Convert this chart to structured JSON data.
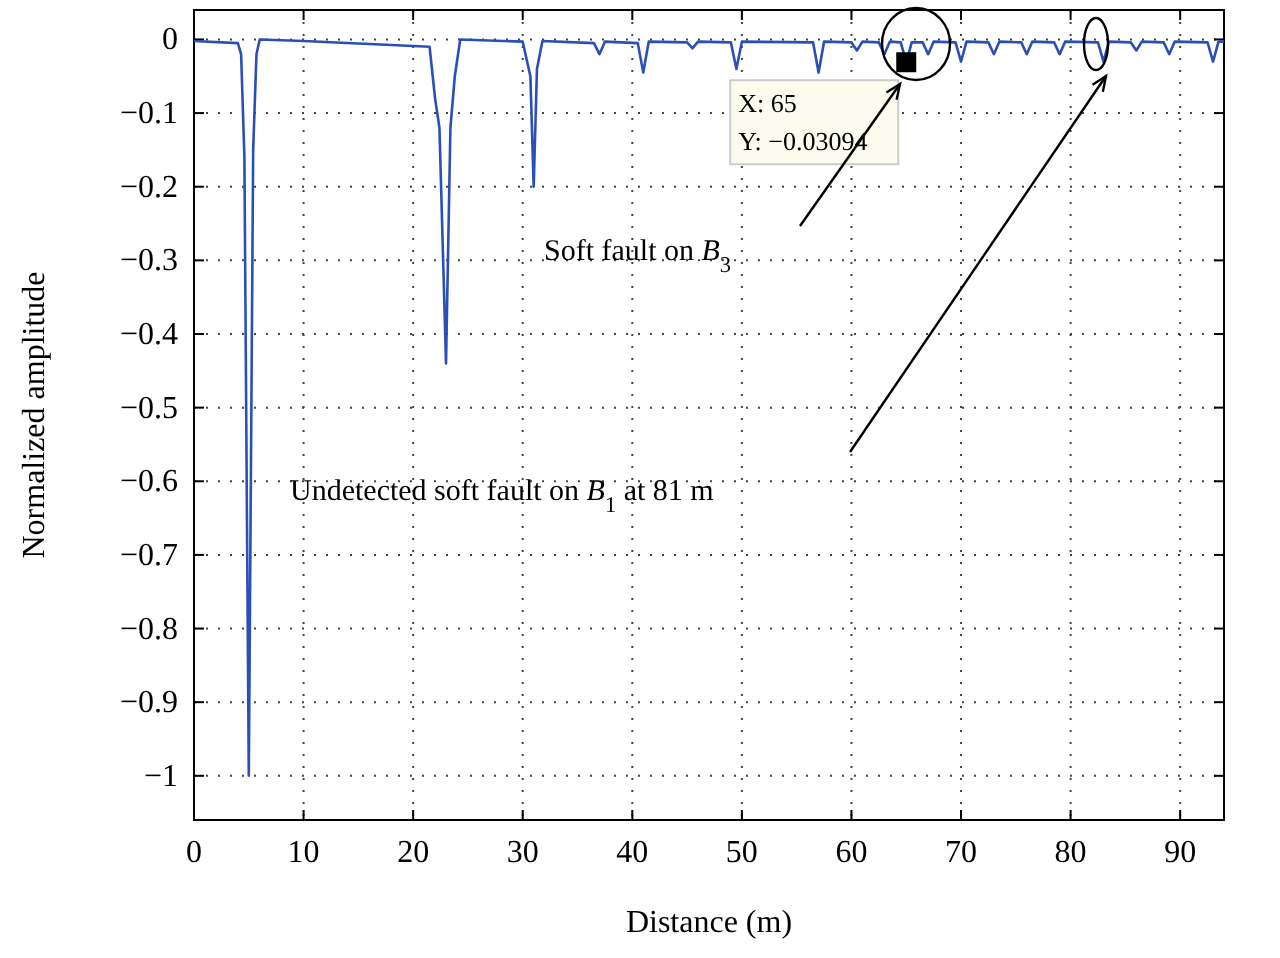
{
  "chart_data": {
    "type": "line",
    "xlabel": "Distance (m)",
    "ylabel": "Normalized amplitude",
    "xlim": [
      0,
      94
    ],
    "ylim": [
      -1.06,
      0.04
    ],
    "xticks": [
      0,
      10,
      20,
      30,
      40,
      50,
      60,
      70,
      80,
      90
    ],
    "yticks": [
      0,
      {
        "value": -0.1,
        "label": "−0.1"
      },
      {
        "value": -0.2,
        "label": "−0.2"
      },
      {
        "value": -0.3,
        "label": "−0.3"
      },
      {
        "value": -0.4,
        "label": "−0.4"
      },
      {
        "value": -0.5,
        "label": "−0.5"
      },
      {
        "value": -0.6,
        "label": "−0.6"
      },
      {
        "value": -0.7,
        "label": "−0.7"
      },
      {
        "value": -0.8,
        "label": "−0.8"
      },
      {
        "value": -0.9,
        "label": "−0.9"
      },
      {
        "value": -1,
        "label": "−1"
      }
    ],
    "grid": true,
    "series": [
      {
        "color": "#2a4fb5",
        "x": [
          0,
          4,
          4.3,
          4.6,
          5,
          5.4,
          5.7,
          6,
          10,
          21.5,
          22,
          22.4,
          23,
          23.4,
          23.8,
          24.3,
          30,
          30.4,
          30.7,
          31,
          31.3,
          31.8,
          36.5,
          37,
          37.5,
          40.5,
          41,
          41.5,
          45,
          45.5,
          46,
          49,
          49.5,
          50,
          56.5,
          57,
          57.5,
          60,
          60.5,
          61,
          62.5,
          63,
          63.5,
          64.5,
          65,
          65.5,
          66.5,
          67,
          67.5,
          69.5,
          70,
          70.5,
          72.5,
          73,
          73.5,
          75.5,
          76,
          76.5,
          78.5,
          79,
          79.5,
          82.5,
          83,
          83.5,
          85.5,
          86,
          86.5,
          88.5,
          89,
          89.5,
          92.5,
          93,
          93.5,
          94
        ],
        "values": [
          -0.002,
          -0.005,
          -0.02,
          -0.16,
          -1,
          -0.15,
          -0.02,
          0,
          -0.002,
          -0.01,
          -0.08,
          -0.12,
          -0.44,
          -0.12,
          -0.05,
          0,
          -0.003,
          -0.03,
          -0.05,
          -0.2,
          -0.04,
          -0.002,
          -0.005,
          -0.02,
          -0.003,
          -0.005,
          -0.045,
          -0.003,
          -0.004,
          -0.012,
          -0.003,
          -0.004,
          -0.04,
          -0.003,
          -0.004,
          -0.045,
          -0.003,
          -0.004,
          -0.015,
          -0.003,
          -0.004,
          -0.02,
          -0.003,
          -0.004,
          -0.031,
          -0.004,
          -0.004,
          -0.02,
          -0.003,
          -0.004,
          -0.03,
          -0.003,
          -0.004,
          -0.02,
          -0.003,
          -0.004,
          -0.02,
          -0.003,
          -0.004,
          -0.02,
          -0.003,
          -0.004,
          -0.03,
          -0.003,
          -0.004,
          -0.015,
          -0.003,
          -0.004,
          -0.02,
          -0.003,
          -0.004,
          -0.03,
          -0.003,
          -0.003
        ]
      }
    ],
    "annotations": [
      {
        "text": "X: 65\nY: −0.03094",
        "x": 65,
        "y": -0.03094
      },
      "Soft fault on B$_{3}$",
      "Undetected soft fault on B$_{1}$ at 81 m"
    ]
  }
}
